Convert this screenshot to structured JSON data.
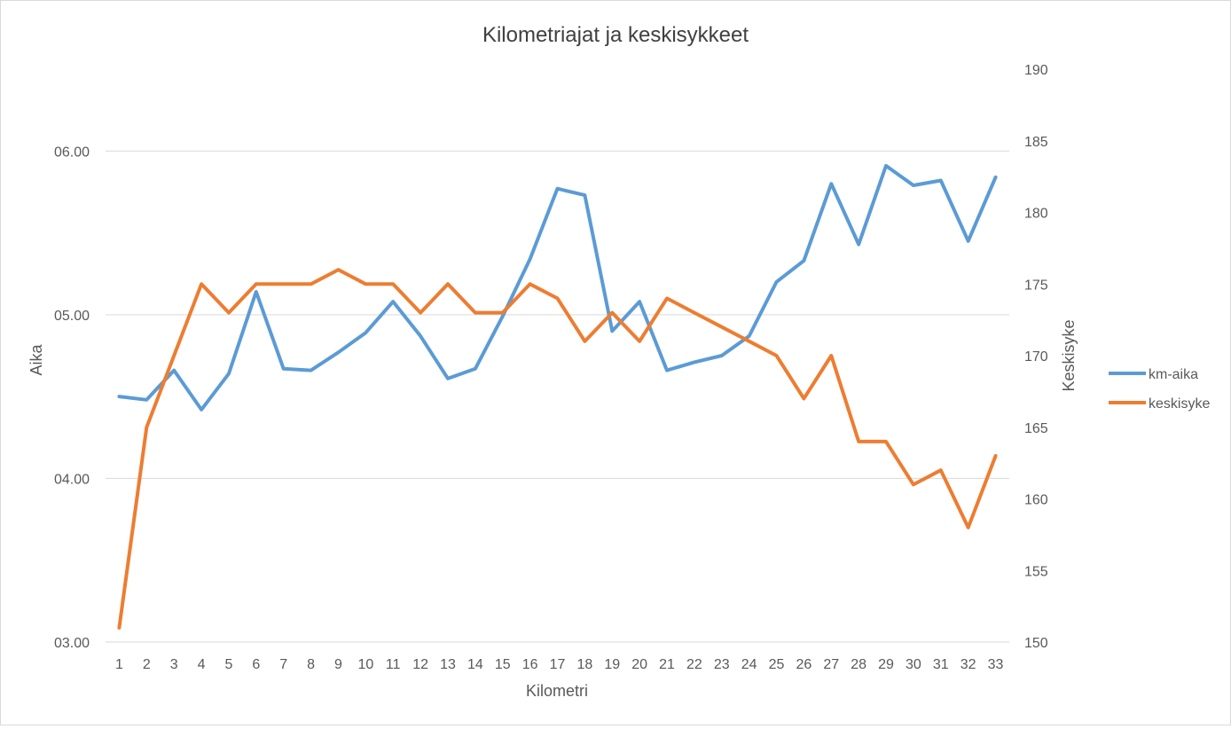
{
  "chart_data": {
    "type": "line",
    "title": "Kilometriajat ja keskisykkeet",
    "xlabel": "Kilometri",
    "ylabel_left": "Aika",
    "ylabel_right": "Keskisyke",
    "x": [
      1,
      2,
      3,
      4,
      5,
      6,
      7,
      8,
      9,
      10,
      11,
      12,
      13,
      14,
      15,
      16,
      17,
      18,
      19,
      20,
      21,
      22,
      23,
      24,
      25,
      26,
      27,
      28,
      29,
      30,
      31,
      32,
      33
    ],
    "y_left": {
      "range_minutes": [
        3,
        6.5
      ],
      "ticks": [
        3,
        4,
        5,
        6
      ],
      "tick_labels": [
        "03.00",
        "04.00",
        "05.00",
        "06.00"
      ]
    },
    "y_right": {
      "range": [
        150,
        190
      ],
      "ticks": [
        150,
        155,
        160,
        165,
        170,
        175,
        180,
        185,
        190
      ],
      "tick_labels": [
        "150",
        "155",
        "160",
        "165",
        "170",
        "175",
        "180",
        "185",
        "190"
      ]
    },
    "grid": "horizontal",
    "legend_position": "right",
    "series": [
      {
        "name": "km-aika",
        "axis": "left",
        "color": "#5b9bd5",
        "values": [
          4.5,
          4.48,
          4.66,
          4.42,
          4.64,
          5.14,
          4.67,
          4.66,
          4.77,
          4.89,
          5.08,
          4.87,
          4.61,
          4.67,
          4.99,
          5.34,
          5.77,
          5.73,
          4.9,
          5.08,
          4.66,
          4.71,
          4.75,
          4.87,
          5.2,
          5.33,
          5.8,
          5.43,
          5.91,
          5.79,
          5.82,
          5.45,
          5.84
        ]
      },
      {
        "name": "keskisyke",
        "axis": "right",
        "color": "#ed7d31",
        "values": [
          151,
          165,
          170,
          175,
          173,
          175,
          175,
          175,
          176,
          175,
          175,
          173,
          175,
          173,
          173,
          175,
          174,
          171,
          173,
          171,
          174,
          173,
          172,
          171,
          170,
          167,
          170,
          164,
          164,
          161,
          162,
          158,
          163
        ]
      }
    ]
  }
}
